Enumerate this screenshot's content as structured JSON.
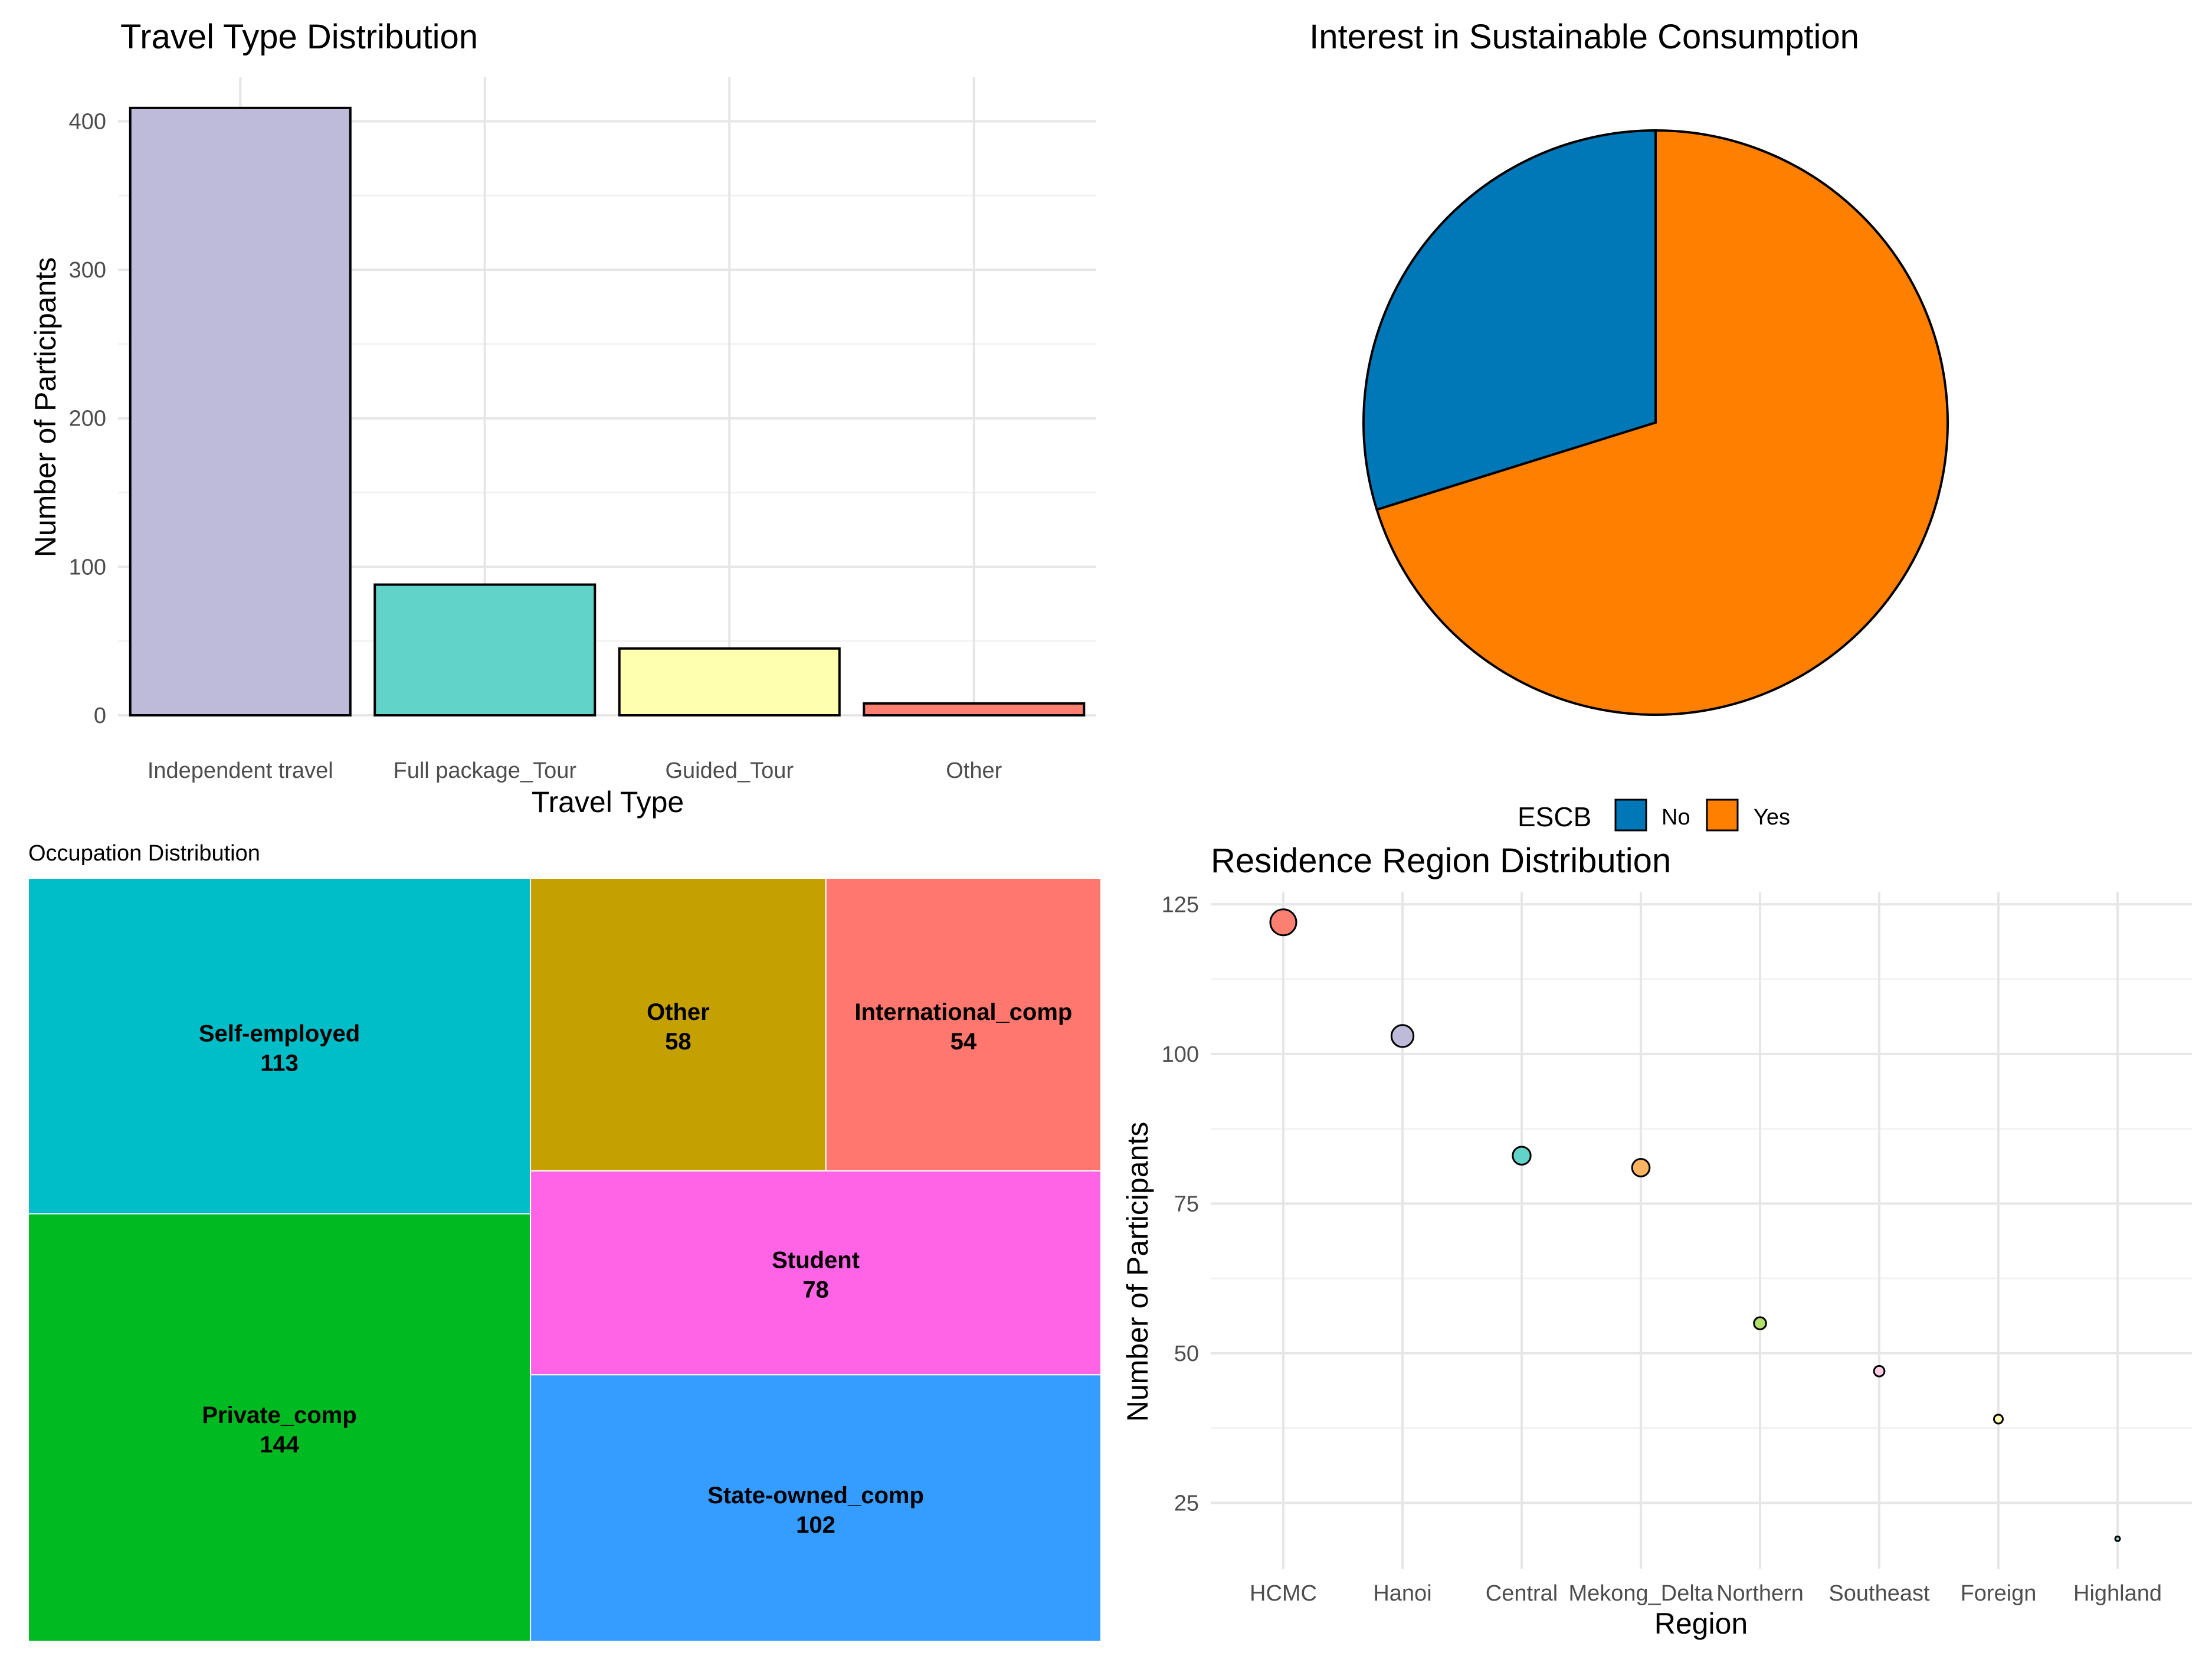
{
  "chart_data": [
    {
      "id": "travel",
      "type": "bar",
      "title": "Travel Type Distribution",
      "xlabel": "Travel Type",
      "ylabel": "Number of Participants",
      "categories": [
        "Independent travel",
        "Full package_Tour",
        "Guided_Tour",
        "Other"
      ],
      "values": [
        409,
        88,
        45,
        8
      ],
      "colors": [
        "#bebada",
        "#62d3c8",
        "#ffffb0",
        "#fb8072"
      ],
      "ylim": [
        0,
        430
      ],
      "yticks": [
        0,
        100,
        200,
        300,
        400
      ],
      "grid": true
    },
    {
      "id": "escb",
      "type": "pie",
      "title": "Interest in Sustainable Consumption",
      "legend_title": "ESCB",
      "legend_position": "bottom",
      "labels": [
        "No",
        "Yes"
      ],
      "values": [
        164,
        386
      ],
      "colors": [
        "#0077b7",
        "#ff7f00"
      ]
    },
    {
      "id": "occupation",
      "type": "treemap",
      "title": "Occupation Distribution",
      "items": [
        {
          "label": "Self-employed",
          "value": 113,
          "color": "#00bec8"
        },
        {
          "label": "Private_comp",
          "value": 144,
          "color": "#00ba21"
        },
        {
          "label": "Other",
          "value": 58,
          "color": "#c4a100"
        },
        {
          "label": "International_comp",
          "value": 54,
          "color": "#ff776e"
        },
        {
          "label": "Student",
          "value": 78,
          "color": "#ff63e6"
        },
        {
          "label": "State-owned_comp",
          "value": 102,
          "color": "#359dff"
        }
      ]
    },
    {
      "id": "region",
      "type": "scatter",
      "title": "Residence Region Distribution",
      "xlabel": "Region",
      "ylabel": "Number of Participants",
      "categories": [
        "HCMC",
        "Hanoi",
        "Central",
        "Mekong_Delta",
        "Northern",
        "Southeast",
        "Foreign",
        "Highland"
      ],
      "values": [
        122,
        103,
        83,
        81,
        55,
        47,
        39,
        19
      ],
      "colors": [
        "#fb8072",
        "#bebada",
        "#62d3c8",
        "#fdb462",
        "#b3de69",
        "#fccde5",
        "#ffffb3",
        "#8dd3c7"
      ],
      "ylim": [
        14,
        127
      ],
      "yticks": [
        25,
        50,
        75,
        100,
        125
      ],
      "grid": true
    }
  ]
}
